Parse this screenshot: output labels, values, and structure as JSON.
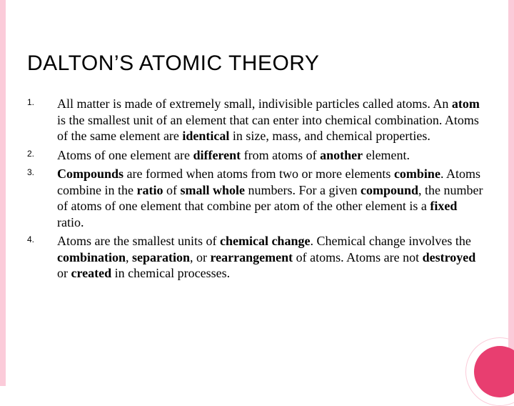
{
  "colors": {
    "border": "#fbcbd9",
    "circle_fill": "#e83e70",
    "circle_ring": "#fbcbd9",
    "text": "#000000",
    "bg": "#ffffff"
  },
  "typography": {
    "title_fontsize": 30,
    "num_fontsize": 12,
    "body_fontsize": 18
  },
  "title": "DALTON’S ATOMIC THEORY",
  "items": [
    {
      "num": "1.",
      "html": "All matter is made of extremely small, indivisible particles called atoms. An <b>atom</b> is the smallest unit of an element that can enter into chemical combination. Atoms of the same element are <b>identical</b> in size, mass, and chemical properties."
    },
    {
      "num": "2.",
      "html": "Atoms of one element are <b>different</b> from atoms of <b>another</b> element."
    },
    {
      "num": "3.",
      "html": "<b>Compounds</b> are formed when atoms from two or more elements <b>combine</b>. Atoms combine in the <b>ratio</b> of <b>small whole</b> numbers. For a given <b>compound</b>, the number of atoms of one element that combine per atom of the other element is a <b>fixed</b> ratio."
    },
    {
      "num": "4.",
      "html": "Atoms are the smallest units of <b>chemical change</b>. Chemical change involves the <b>combination</b>, <b>separation</b>, or <b>rearrangement</b> of atoms. Atoms are not <b>destroyed</b> or <b>created</b> in chemical processes."
    }
  ]
}
